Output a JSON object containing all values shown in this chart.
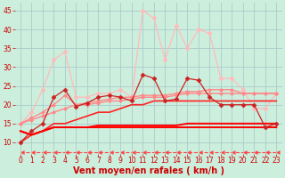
{
  "x_values": [
    0,
    1,
    2,
    3,
    4,
    5,
    6,
    7,
    8,
    9,
    10,
    11,
    12,
    13,
    14,
    15,
    16,
    17,
    18,
    19,
    20,
    21,
    22,
    23
  ],
  "lines": [
    {
      "y": [
        10,
        12,
        13,
        15,
        15,
        16,
        17,
        18,
        18,
        19,
        20,
        20,
        21,
        21,
        21,
        21,
        21,
        21,
        21,
        21,
        21,
        21,
        21,
        21
      ],
      "color": "#ff2222",
      "lw": 1.2,
      "marker": null,
      "zorder": 5
    },
    {
      "y": [
        13,
        12,
        13,
        14,
        14,
        14,
        14,
        14,
        14,
        14,
        14,
        14,
        14,
        14,
        14,
        14,
        14,
        14,
        14,
        14,
        14,
        14,
        14,
        14
      ],
      "color": "#ff0000",
      "lw": 1.4,
      "marker": null,
      "zorder": 5
    },
    {
      "y": [
        13,
        12,
        13,
        14,
        14,
        14,
        14,
        14.5,
        14.5,
        14.5,
        14.5,
        14.5,
        14.5,
        14.5,
        14.5,
        15,
        15,
        15,
        15,
        15,
        15,
        15,
        15,
        15
      ],
      "color": "#ff0000",
      "lw": 1.4,
      "marker": null,
      "zorder": 5
    },
    {
      "y": [
        15,
        16,
        17,
        18,
        19,
        20,
        20,
        20.5,
        21,
        21,
        21.5,
        22,
        22,
        22,
        22.5,
        23,
        23,
        23,
        23,
        23,
        23,
        23,
        23,
        23
      ],
      "color": "#ff8888",
      "lw": 1.0,
      "marker": "D",
      "ms": 2.0,
      "zorder": 3
    },
    {
      "y": [
        15,
        16.5,
        18,
        20,
        22.5,
        20,
        20.5,
        21,
        21.5,
        22,
        22,
        22.5,
        22.5,
        22.5,
        23,
        23.5,
        23.5,
        24,
        24,
        24,
        23,
        23,
        23,
        23
      ],
      "color": "#ff8888",
      "lw": 1.0,
      "marker": "D",
      "ms": 2.0,
      "zorder": 3
    },
    {
      "y": [
        10,
        13,
        15,
        22,
        24,
        19.5,
        20.5,
        22,
        22.5,
        22,
        21,
        28,
        27,
        21,
        21.5,
        27,
        26.5,
        22,
        20,
        20,
        20,
        20,
        14,
        15
      ],
      "color": "#cc2222",
      "lw": 0.9,
      "marker": "D",
      "ms": 2.5,
      "zorder": 6
    },
    {
      "y": [
        15,
        18,
        24,
        32,
        34,
        22,
        22,
        23,
        23,
        24,
        22,
        45,
        43,
        32,
        41,
        35,
        40,
        39,
        27,
        27,
        24,
        19,
        19,
        23
      ],
      "color": "#ffbbbb",
      "lw": 0.9,
      "marker": "D",
      "ms": 2.5,
      "zorder": 2
    },
    {
      "y": [
        7.5,
        7.5,
        7.5,
        7.5,
        7.5,
        7.5,
        7.5,
        7.5,
        7.5,
        7.5,
        7.5,
        7.5,
        7.5,
        7.5,
        7.5,
        7.5,
        7.5,
        7.5,
        7.5,
        7.5,
        7.5,
        7.5,
        7.5,
        7.5
      ],
      "color": "#ff4444",
      "lw": 0.8,
      "marker": 4,
      "ms": 3.5,
      "linestyle": "dashed",
      "zorder": 1
    }
  ],
  "xlabel": "Vent moyen/en rafales ( km/h )",
  "xlabel_color": "#cc0000",
  "xlabel_fontsize": 7,
  "bg_color": "#cceedd",
  "grid_color": "#aacccc",
  "tick_color": "#cc0000",
  "tick_fontsize": 5.5,
  "xlim": [
    -0.5,
    23.5
  ],
  "ylim": [
    7,
    47
  ],
  "yticks": [
    10,
    15,
    20,
    25,
    30,
    35,
    40,
    45
  ],
  "xticks": [
    0,
    1,
    2,
    3,
    4,
    5,
    6,
    7,
    8,
    9,
    10,
    11,
    12,
    13,
    14,
    15,
    16,
    17,
    18,
    19,
    20,
    21,
    22,
    23
  ]
}
